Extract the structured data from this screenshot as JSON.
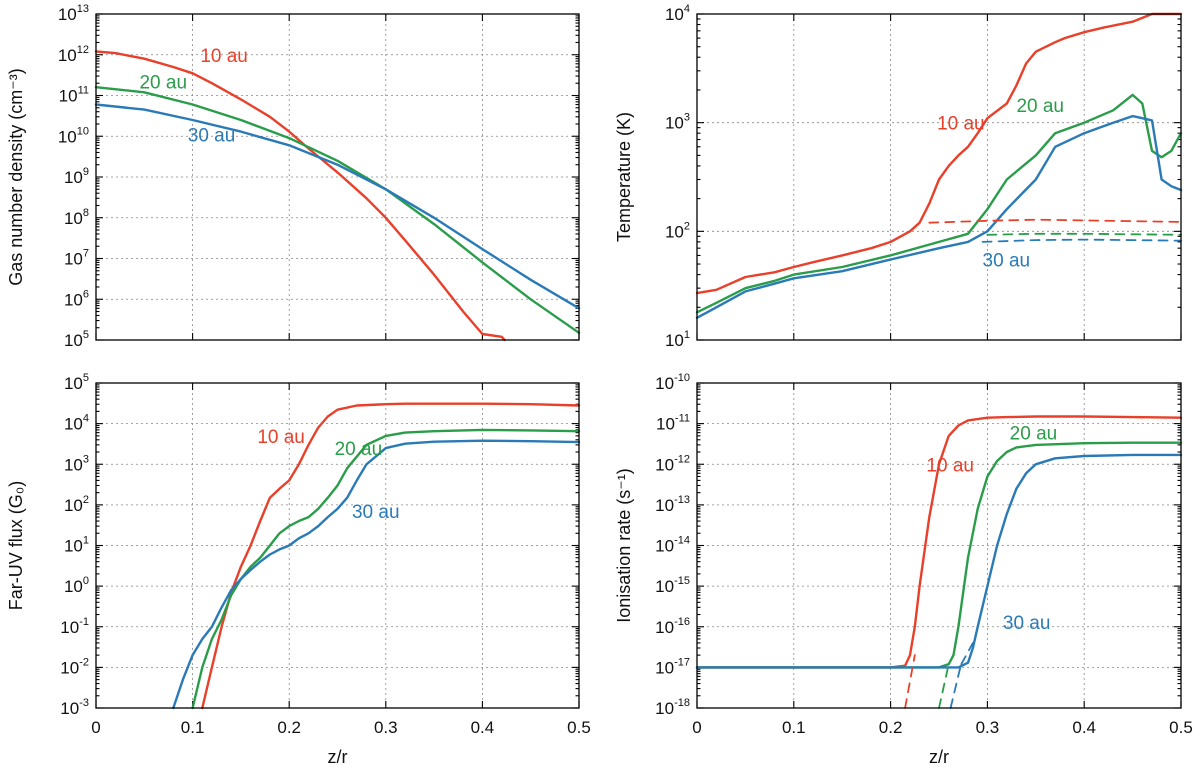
{
  "chart_data": [
    {
      "id": "density",
      "type": "line",
      "title": "",
      "xlabel": "",
      "ylabel": "Gas number density (cm⁻³)",
      "xlim": [
        0,
        0.5
      ],
      "ylim_log10": [
        5,
        13
      ],
      "yscale": "log",
      "grid": true,
      "x_ticks": [
        0,
        0.1,
        0.2,
        0.3,
        0.4,
        0.5
      ],
      "x_tick_labels_shown": false,
      "y_ticks": [
        "10^5",
        "10^6",
        "10^7",
        "10^8",
        "10^9",
        "10^10",
        "10^11",
        "10^12",
        "10^13"
      ],
      "series": [
        {
          "name": "10 au",
          "color": "#e8402a",
          "style": "solid",
          "x": [
            0,
            0.02,
            0.05,
            0.08,
            0.1,
            0.12,
            0.15,
            0.18,
            0.2,
            0.22,
            0.25,
            0.28,
            0.3,
            0.32,
            0.35,
            0.38,
            0.4,
            0.42,
            0.423
          ],
          "y": [
            1200000000000.0,
            1100000000000.0,
            800000000000.0,
            500000000000.0,
            350000000000.0,
            200000000000.0,
            80000000000.0,
            30000000000.0,
            13000000000.0,
            5000000000.0,
            1300000000.0,
            300000000.0,
            100000000.0,
            28000000.0,
            4000000.0,
            500000.0,
            140000.0,
            120000.0,
            100000.0
          ]
        },
        {
          "name": "20 au",
          "color": "#2a9d4a",
          "style": "solid",
          "x": [
            0,
            0.05,
            0.1,
            0.15,
            0.2,
            0.25,
            0.3,
            0.35,
            0.4,
            0.45,
            0.5
          ],
          "y": [
            160000000000.0,
            120000000000.0,
            60000000000.0,
            25000000000.0,
            9000000000.0,
            2500000000.0,
            500000000.0,
            70000000.0,
            8000000.0,
            1000000.0,
            150000.0
          ]
        },
        {
          "name": "30 au",
          "color": "#2a7ab8",
          "style": "solid",
          "x": [
            0,
            0.05,
            0.1,
            0.15,
            0.2,
            0.25,
            0.3,
            0.35,
            0.4,
            0.45,
            0.5
          ],
          "y": [
            60000000000.0,
            45000000000.0,
            25000000000.0,
            13000000000.0,
            6000000000.0,
            2000000000.0,
            500000000.0,
            100000000.0,
            17000000.0,
            3000000.0,
            600000.0
          ]
        }
      ],
      "labels": [
        {
          "text": "10 au",
          "series": "10 au",
          "x": 0.108,
          "y": 1000000000000.0
        },
        {
          "text": "20 au",
          "series": "20 au",
          "x": 0.045,
          "y": 220000000000.0
        },
        {
          "text": "30 au",
          "series": "30 au",
          "x": 0.095,
          "y": 11000000000.0
        }
      ]
    },
    {
      "id": "temperature",
      "type": "line",
      "title": "",
      "xlabel": "",
      "ylabel": "Temperature (K)",
      "xlim": [
        0,
        0.5
      ],
      "ylim_log10": [
        1,
        4
      ],
      "yscale": "log",
      "grid": true,
      "x_ticks": [
        0,
        0.1,
        0.2,
        0.3,
        0.4,
        0.5
      ],
      "x_tick_labels_shown": false,
      "y_ticks": [
        "10^1",
        "10^2",
        "10^3",
        "10^4"
      ],
      "series": [
        {
          "name": "10 au",
          "color": "#e8402a",
          "style": "solid",
          "x": [
            0,
            0.02,
            0.05,
            0.08,
            0.1,
            0.12,
            0.15,
            0.18,
            0.2,
            0.22,
            0.23,
            0.24,
            0.25,
            0.26,
            0.27,
            0.28,
            0.29,
            0.3,
            0.32,
            0.33,
            0.34,
            0.35,
            0.37,
            0.38,
            0.4,
            0.42,
            0.45,
            0.47,
            0.5
          ],
          "y": [
            27,
            29,
            38,
            42,
            47,
            52,
            60,
            70,
            80,
            100,
            120,
            180,
            300,
            400,
            500,
            600,
            800,
            1100,
            1500,
            2200,
            3500,
            4500,
            5500,
            6000,
            6800,
            7500,
            8500,
            10000,
            10000
          ]
        },
        {
          "name": "20 au",
          "color": "#2a9d4a",
          "style": "solid",
          "x": [
            0,
            0.02,
            0.05,
            0.08,
            0.1,
            0.15,
            0.2,
            0.25,
            0.28,
            0.3,
            0.32,
            0.35,
            0.37,
            0.4,
            0.43,
            0.45,
            0.46,
            0.47,
            0.48,
            0.49,
            0.5
          ],
          "y": [
            18,
            22,
            30,
            35,
            40,
            47,
            60,
            80,
            95,
            160,
            300,
            500,
            800,
            1000,
            1300,
            1800,
            1500,
            550,
            480,
            550,
            800
          ]
        },
        {
          "name": "30 au",
          "color": "#2a7ab8",
          "style": "solid",
          "x": [
            0,
            0.02,
            0.05,
            0.08,
            0.1,
            0.15,
            0.2,
            0.25,
            0.28,
            0.3,
            0.32,
            0.35,
            0.37,
            0.4,
            0.43,
            0.45,
            0.46,
            0.47,
            0.48,
            0.49,
            0.5
          ],
          "y": [
            16,
            20,
            28,
            33,
            37,
            43,
            55,
            70,
            80,
            100,
            160,
            300,
            600,
            800,
            1000,
            1150,
            1100,
            1050,
            300,
            260,
            240
          ]
        },
        {
          "name": "10 au (dashed)",
          "color": "#e8402a",
          "style": "dashed",
          "x": [
            0.24,
            0.3,
            0.35,
            0.4,
            0.45,
            0.5
          ],
          "y": [
            120,
            125,
            128,
            126,
            124,
            122
          ]
        },
        {
          "name": "20 au (dashed)",
          "color": "#2a9d4a",
          "style": "dashed",
          "x": [
            0.3,
            0.35,
            0.4,
            0.45,
            0.5
          ],
          "y": [
            93,
            95,
            95,
            94,
            93
          ]
        },
        {
          "name": "30 au (dashed)",
          "color": "#2a7ab8",
          "style": "dashed",
          "x": [
            0.295,
            0.35,
            0.4,
            0.45,
            0.5
          ],
          "y": [
            80,
            83,
            84,
            83,
            82
          ]
        }
      ],
      "labels": [
        {
          "text": "10 au",
          "series": "10 au",
          "x": 0.248,
          "y": 1000
        },
        {
          "text": "20 au",
          "series": "20 au",
          "x": 0.33,
          "y": 1450
        },
        {
          "text": "30 au",
          "series": "30 au",
          "x": 0.295,
          "y": 55
        }
      ]
    },
    {
      "id": "fuv",
      "type": "line",
      "title": "",
      "xlabel": "z/r",
      "ylabel": "Far-UV flux (G₀)",
      "xlim": [
        0,
        0.5
      ],
      "ylim_log10": [
        -3,
        5
      ],
      "yscale": "log",
      "grid": true,
      "x_ticks": [
        0,
        0.1,
        0.2,
        0.3,
        0.4,
        0.5
      ],
      "x_tick_labels": [
        "0",
        "0.1",
        "0.2",
        "0.3",
        "0.4",
        "0.5"
      ],
      "y_ticks": [
        "10^-3",
        "10^-2",
        "10^-1",
        "10^0",
        "10^1",
        "10^2",
        "10^3",
        "10^4",
        "10^5"
      ],
      "series": [
        {
          "name": "10 au",
          "color": "#e8402a",
          "style": "solid",
          "x": [
            0.11,
            0.12,
            0.13,
            0.14,
            0.15,
            0.16,
            0.17,
            0.18,
            0.19,
            0.2,
            0.21,
            0.22,
            0.23,
            0.24,
            0.25,
            0.27,
            0.3,
            0.32,
            0.35,
            0.4,
            0.45,
            0.5
          ],
          "y": [
            0.001,
            0.01,
            0.1,
            0.7,
            3,
            10,
            40,
            150,
            250,
            400,
            1000,
            3000,
            8000,
            15000,
            22000,
            28000,
            30000,
            31000,
            31000,
            31000,
            30000,
            28000
          ]
        },
        {
          "name": "20 au",
          "color": "#2a9d4a",
          "style": "solid",
          "x": [
            0.1,
            0.11,
            0.12,
            0.13,
            0.14,
            0.15,
            0.16,
            0.17,
            0.18,
            0.19,
            0.2,
            0.21,
            0.22,
            0.23,
            0.24,
            0.25,
            0.26,
            0.28,
            0.3,
            0.32,
            0.35,
            0.4,
            0.45,
            0.5
          ],
          "y": [
            0.001,
            0.01,
            0.05,
            0.15,
            0.6,
            1.5,
            3,
            5,
            10,
            20,
            30,
            40,
            50,
            80,
            150,
            300,
            800,
            3000,
            5000,
            6000,
            6500,
            7000,
            6800,
            6500
          ]
        },
        {
          "name": "30 au",
          "color": "#2a7ab8",
          "style": "solid",
          "x": [
            0.08,
            0.09,
            0.1,
            0.11,
            0.12,
            0.13,
            0.14,
            0.15,
            0.16,
            0.17,
            0.18,
            0.19,
            0.2,
            0.21,
            0.22,
            0.23,
            0.24,
            0.25,
            0.26,
            0.27,
            0.28,
            0.3,
            0.32,
            0.35,
            0.4,
            0.45,
            0.5
          ],
          "y": [
            0.001,
            0.005,
            0.02,
            0.05,
            0.1,
            0.3,
            0.8,
            1.5,
            2.5,
            4,
            6,
            8,
            10,
            15,
            20,
            30,
            50,
            80,
            150,
            400,
            1000,
            2500,
            3200,
            3600,
            3800,
            3700,
            3500
          ]
        }
      ],
      "labels": [
        {
          "text": "10 au",
          "series": "10 au",
          "x": 0.167,
          "y": 5000
        },
        {
          "text": "20 au",
          "series": "20 au",
          "x": 0.247,
          "y": 2500
        },
        {
          "text": "30 au",
          "series": "30 au",
          "x": 0.265,
          "y": 70
        }
      ]
    },
    {
      "id": "ionisation",
      "type": "line",
      "title": "",
      "xlabel": "z/r",
      "ylabel": "Ionisation rate (s⁻¹)",
      "xlim": [
        0,
        0.5
      ],
      "ylim_log10": [
        -18,
        -10
      ],
      "yscale": "log",
      "grid": true,
      "x_ticks": [
        0,
        0.1,
        0.2,
        0.3,
        0.4,
        0.5
      ],
      "x_tick_labels": [
        "0",
        "0.1",
        "0.2",
        "0.3",
        "0.4",
        "0.5"
      ],
      "y_ticks": [
        "10^-18",
        "10^-17",
        "10^-16",
        "10^-15",
        "10^-14",
        "10^-13",
        "10^-12",
        "10^-11",
        "10^-10"
      ],
      "series": [
        {
          "name": "10 au",
          "color": "#e8402a",
          "style": "solid",
          "x": [
            0,
            0.2,
            0.215,
            0.22,
            0.225,
            0.23,
            0.24,
            0.25,
            0.26,
            0.27,
            0.28,
            0.3,
            0.32,
            0.35,
            0.4,
            0.45,
            0.5
          ],
          "y": [
            1e-17,
            1e-17,
            1.1e-17,
            2e-17,
            1e-16,
            1e-15,
            5e-14,
            1e-12,
            5e-12,
            9e-12,
            1.2e-11,
            1.4e-11,
            1.45e-11,
            1.5e-11,
            1.5e-11,
            1.45e-11,
            1.4e-11
          ]
        },
        {
          "name": "20 au",
          "color": "#2a9d4a",
          "style": "solid",
          "x": [
            0,
            0.25,
            0.26,
            0.265,
            0.27,
            0.28,
            0.29,
            0.3,
            0.31,
            0.32,
            0.33,
            0.35,
            0.4,
            0.45,
            0.5
          ],
          "y": [
            1e-17,
            1e-17,
            1.2e-17,
            2e-17,
            1e-16,
            5e-15,
            8e-14,
            5e-13,
            1.2e-12,
            2e-12,
            2.6e-12,
            3e-12,
            3.3e-12,
            3.4e-12,
            3.4e-12
          ]
        },
        {
          "name": "30 au",
          "color": "#2a7ab8",
          "style": "solid",
          "x": [
            0,
            0.27,
            0.28,
            0.285,
            0.29,
            0.3,
            0.31,
            0.32,
            0.33,
            0.34,
            0.35,
            0.37,
            0.4,
            0.45,
            0.5
          ],
          "y": [
            1e-17,
            1e-17,
            1.3e-17,
            3e-17,
            1e-16,
            1e-15,
            1e-14,
            6e-14,
            2.5e-13,
            6e-13,
            1e-12,
            1.4e-12,
            1.6e-12,
            1.7e-12,
            1.7e-12
          ]
        },
        {
          "name": "10 au (dashed)",
          "color": "#e8402a",
          "style": "dashed",
          "x": [
            0.215,
            0.225
          ],
          "y": [
            1e-18,
            2e-17
          ]
        },
        {
          "name": "20 au (dashed)",
          "color": "#2a9d4a",
          "style": "dashed",
          "x": [
            0.25,
            0.26
          ],
          "y": [
            1e-18,
            1.2e-17
          ]
        },
        {
          "name": "30 au (dashed)",
          "color": "#2a7ab8",
          "style": "dashed",
          "x": [
            0.262,
            0.272
          ],
          "y": [
            1e-18,
            1e-17
          ]
        },
        {
          "name": "30 au (dashed upper)",
          "color": "#2a7ab8",
          "style": "dashed",
          "x": [
            0.273,
            0.285
          ],
          "y": [
            1.2e-17,
            4e-17
          ]
        }
      ],
      "labels": [
        {
          "text": "10 au",
          "series": "10 au",
          "x": 0.237,
          "y": 1e-12
        },
        {
          "text": "20 au",
          "series": "20 au",
          "x": 0.323,
          "y": 6e-12
        },
        {
          "text": "30 au",
          "series": "30 au",
          "x": 0.316,
          "y": 1.3e-16
        }
      ]
    }
  ]
}
